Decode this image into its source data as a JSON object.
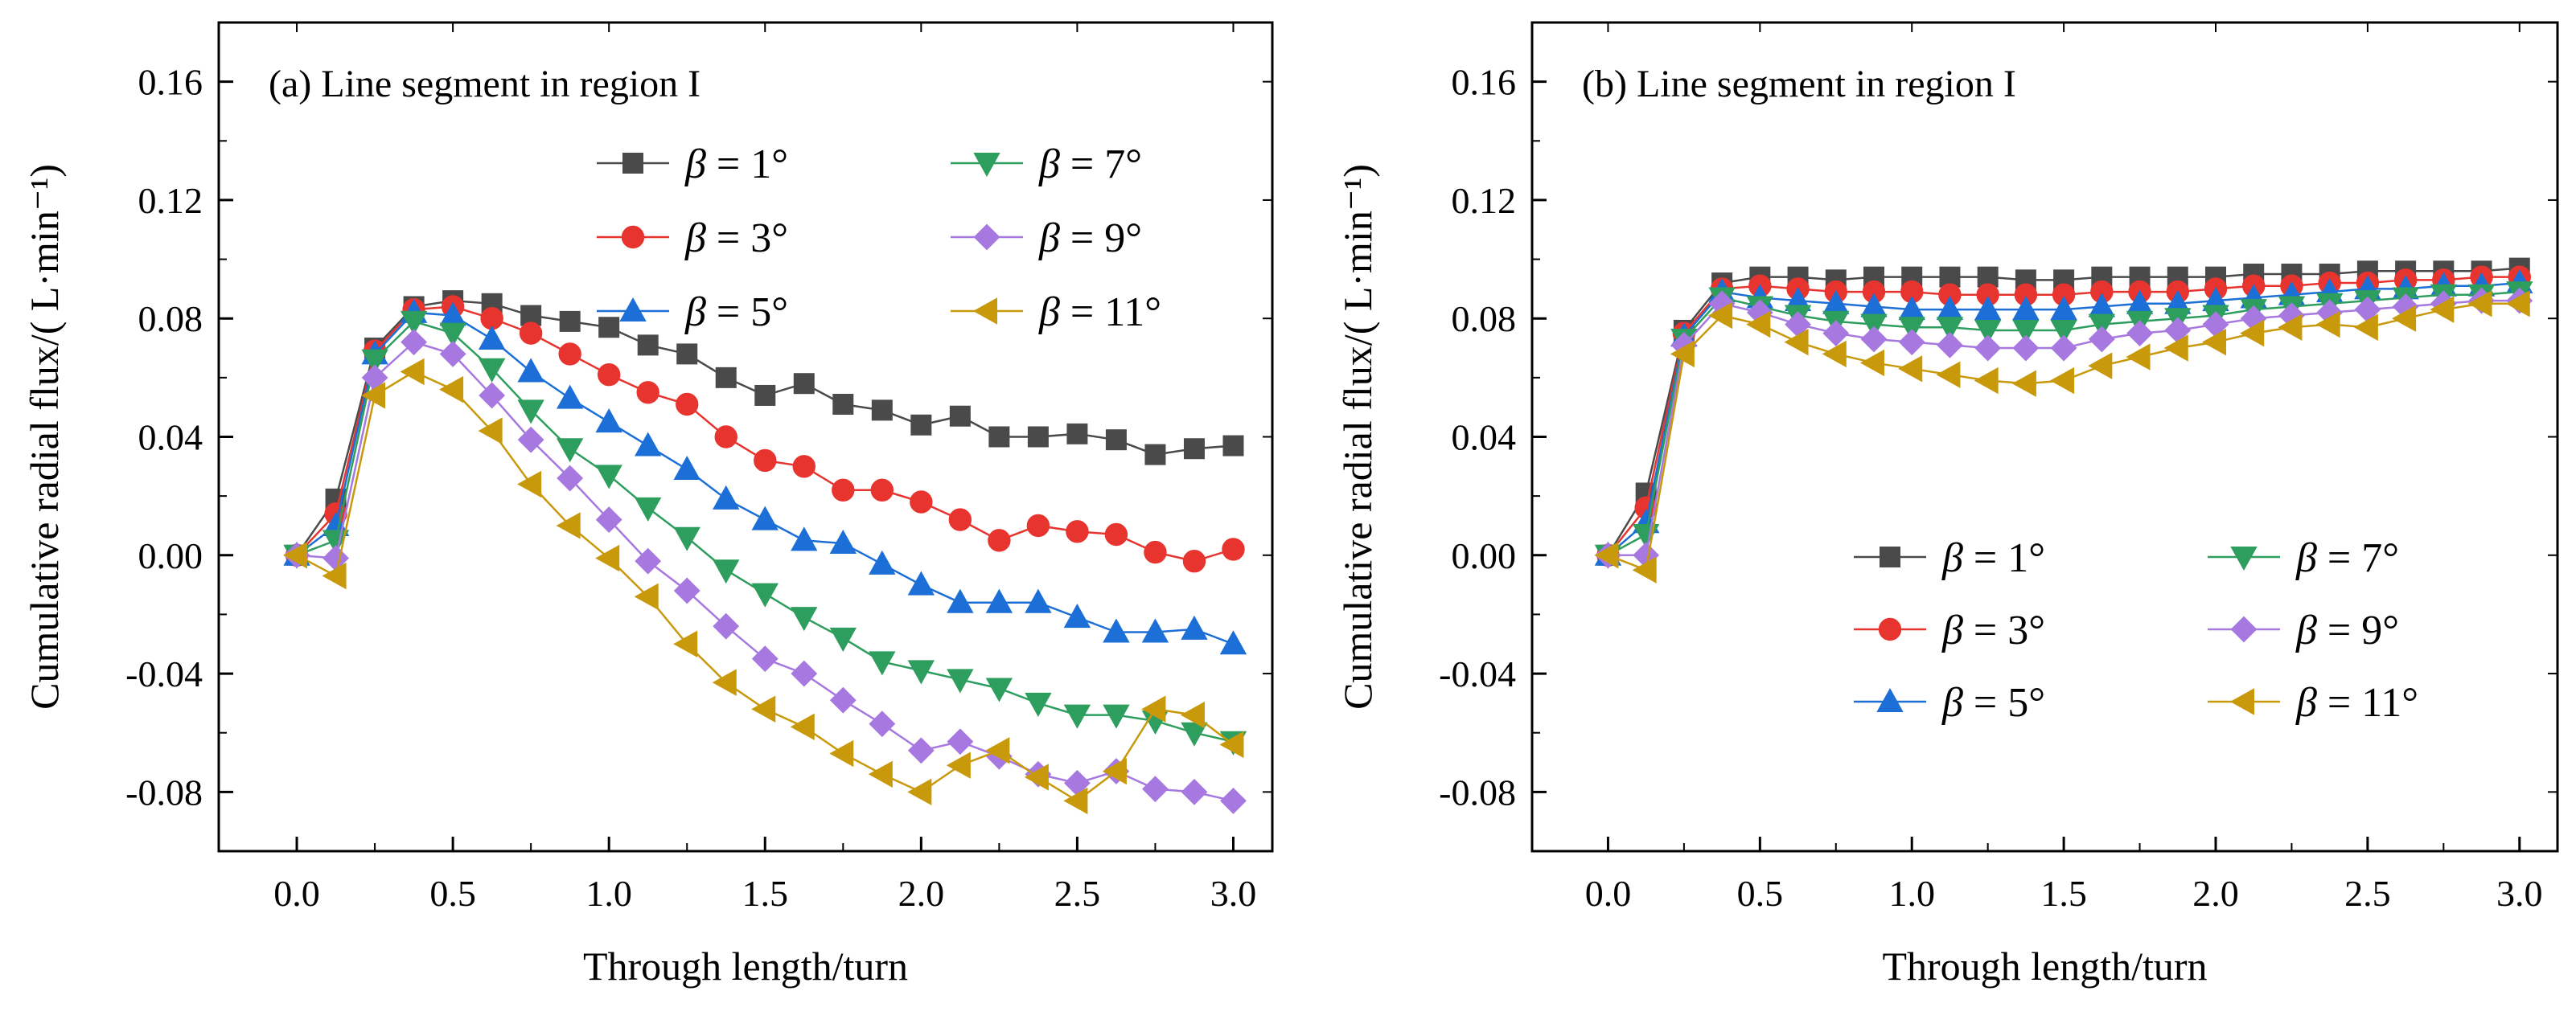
{
  "chart_data": [
    {
      "type": "line",
      "title": "(a)  Line segment in region I",
      "xlabel": "Through length/turn",
      "ylabel": "Cumulative radial flux/( L·min⁻¹)",
      "xlim": [
        -0.25,
        3.125
      ],
      "ylim": [
        -0.1,
        0.18
      ],
      "xticks": [
        "0.0",
        "0.5",
        "1.0",
        "1.5",
        "2.0",
        "2.5",
        "3.0"
      ],
      "yticks": [
        "-0.08",
        "-0.04",
        "0.00",
        "0.04",
        "0.08",
        "0.12",
        "0.16"
      ],
      "legend_position": "top-right",
      "x": [
        0,
        0.125,
        0.25,
        0.375,
        0.5,
        0.625,
        0.75,
        0.875,
        1.0,
        1.125,
        1.25,
        1.375,
        1.5,
        1.625,
        1.75,
        1.875,
        2.0,
        2.125,
        2.25,
        2.375,
        2.5,
        2.625,
        2.75,
        2.875,
        3.0
      ],
      "series": [
        {
          "name": "β = 1°",
          "label_sym": "β",
          "label_val": " = 1°",
          "color": "#4a4a4a",
          "marker": "square",
          "values": [
            0,
            0.019,
            0.07,
            0.084,
            0.086,
            0.085,
            0.081,
            0.079,
            0.077,
            0.071,
            0.068,
            0.06,
            0.054,
            0.058,
            0.051,
            0.049,
            0.044,
            0.047,
            0.04,
            0.04,
            0.041,
            0.039,
            0.034,
            0.036,
            0.037
          ]
        },
        {
          "name": "β = 3°",
          "label_sym": "β",
          "label_val": " = 3°",
          "color": "#e8342f",
          "marker": "circle",
          "values": [
            0,
            0.014,
            0.069,
            0.083,
            0.084,
            0.08,
            0.075,
            0.068,
            0.061,
            0.055,
            0.051,
            0.04,
            0.032,
            0.03,
            0.022,
            0.022,
            0.018,
            0.012,
            0.005,
            0.01,
            0.008,
            0.007,
            0.001,
            -0.002,
            0.002
          ]
        },
        {
          "name": "β = 5°",
          "label_sym": "β",
          "label_val": " = 5°",
          "color": "#1c6fd6",
          "marker": "triangle-up",
          "values": [
            0,
            0.01,
            0.068,
            0.082,
            0.081,
            0.073,
            0.062,
            0.053,
            0.045,
            0.037,
            0.029,
            0.019,
            0.012,
            0.005,
            0.004,
            -0.003,
            -0.01,
            -0.016,
            -0.016,
            -0.016,
            -0.021,
            -0.026,
            -0.026,
            -0.025,
            -0.03
          ]
        },
        {
          "name": "β = 7°",
          "label_sym": "β",
          "label_val": " = 7°",
          "color": "#2e9e5e",
          "marker": "triangle-down",
          "values": [
            0,
            0.005,
            0.066,
            0.079,
            0.075,
            0.063,
            0.049,
            0.036,
            0.027,
            0.016,
            0.006,
            -0.005,
            -0.013,
            -0.021,
            -0.028,
            -0.036,
            -0.039,
            -0.042,
            -0.045,
            -0.05,
            -0.054,
            -0.054,
            -0.056,
            -0.06,
            -0.063
          ]
        },
        {
          "name": "β = 9°",
          "label_sym": "β",
          "label_val": " = 9°",
          "color": "#a678e0",
          "marker": "diamond",
          "values": [
            0,
            -0.001,
            0.06,
            0.072,
            0.068,
            0.054,
            0.039,
            0.026,
            0.012,
            -0.002,
            -0.012,
            -0.024,
            -0.035,
            -0.04,
            -0.049,
            -0.057,
            -0.066,
            -0.063,
            -0.068,
            -0.074,
            -0.077,
            -0.073,
            -0.079,
            -0.08,
            -0.083
          ]
        },
        {
          "name": "β = 11°",
          "label_sym": "β",
          "label_val": " = 11°",
          "color": "#c9990c",
          "marker": "triangle-left",
          "values": [
            0,
            -0.007,
            0.054,
            0.062,
            0.056,
            0.042,
            0.024,
            0.01,
            -0.001,
            -0.014,
            -0.03,
            -0.043,
            -0.052,
            -0.058,
            -0.067,
            -0.074,
            -0.08,
            -0.071,
            -0.066,
            -0.075,
            -0.083,
            -0.073,
            -0.052,
            -0.054,
            -0.064
          ]
        }
      ]
    },
    {
      "type": "line",
      "title": "(b)  Line segment in region I",
      "xlabel": "Through length/turn",
      "ylabel": "Cumulative radial flux/( L·min⁻¹)",
      "xlim": [
        -0.25,
        3.125
      ],
      "ylim": [
        -0.1,
        0.18
      ],
      "xticks": [
        "0.0",
        "0.5",
        "1.0",
        "1.5",
        "2.0",
        "2.5",
        "3.0"
      ],
      "yticks": [
        "-0.08",
        "-0.04",
        "0.00",
        "0.04",
        "0.08",
        "0.12",
        "0.16"
      ],
      "legend_position": "bottom-right",
      "x": [
        0,
        0.125,
        0.25,
        0.375,
        0.5,
        0.625,
        0.75,
        0.875,
        1.0,
        1.125,
        1.25,
        1.375,
        1.5,
        1.625,
        1.75,
        1.875,
        2.0,
        2.125,
        2.25,
        2.375,
        2.5,
        2.625,
        2.75,
        2.875,
        3.0
      ],
      "series": [
        {
          "name": "β = 1°",
          "label_sym": "β",
          "label_val": " = 1°",
          "color": "#4a4a4a",
          "marker": "square",
          "values": [
            0,
            0.021,
            0.076,
            0.092,
            0.094,
            0.094,
            0.093,
            0.094,
            0.094,
            0.094,
            0.094,
            0.093,
            0.093,
            0.094,
            0.094,
            0.094,
            0.094,
            0.095,
            0.095,
            0.095,
            0.096,
            0.096,
            0.096,
            0.096,
            0.097
          ]
        },
        {
          "name": "β = 3°",
          "label_sym": "β",
          "label_val": " = 3°",
          "color": "#e8342f",
          "marker": "circle",
          "values": [
            0,
            0.016,
            0.075,
            0.09,
            0.091,
            0.09,
            0.089,
            0.089,
            0.089,
            0.088,
            0.088,
            0.088,
            0.088,
            0.089,
            0.089,
            0.089,
            0.09,
            0.091,
            0.091,
            0.092,
            0.092,
            0.093,
            0.093,
            0.094,
            0.094
          ]
        },
        {
          "name": "β = 5°",
          "label_sym": "β",
          "label_val": " = 5°",
          "color": "#1c6fd6",
          "marker": "triangle-up",
          "values": [
            0,
            0.011,
            0.074,
            0.089,
            0.087,
            0.086,
            0.085,
            0.084,
            0.083,
            0.083,
            0.083,
            0.083,
            0.083,
            0.084,
            0.085,
            0.085,
            0.086,
            0.087,
            0.088,
            0.089,
            0.09,
            0.09,
            0.091,
            0.091,
            0.092
          ]
        },
        {
          "name": "β = 7°",
          "label_sym": "β",
          "label_val": " = 7°",
          "color": "#2e9e5e",
          "marker": "triangle-down",
          "values": [
            0,
            0.007,
            0.073,
            0.087,
            0.084,
            0.081,
            0.079,
            0.078,
            0.077,
            0.077,
            0.076,
            0.076,
            0.076,
            0.078,
            0.079,
            0.08,
            0.081,
            0.083,
            0.084,
            0.085,
            0.086,
            0.087,
            0.088,
            0.088,
            0.089
          ]
        },
        {
          "name": "β = 9°",
          "label_sym": "β",
          "label_val": " = 9°",
          "color": "#a678e0",
          "marker": "diamond",
          "values": [
            0,
            0.0,
            0.071,
            0.085,
            0.082,
            0.078,
            0.075,
            0.073,
            0.072,
            0.071,
            0.07,
            0.07,
            0.07,
            0.073,
            0.075,
            0.076,
            0.078,
            0.08,
            0.081,
            0.082,
            0.083,
            0.084,
            0.085,
            0.086,
            0.086
          ]
        },
        {
          "name": "β = 11°",
          "label_sym": "β",
          "label_val": " = 11°",
          "color": "#c9990c",
          "marker": "triangle-left",
          "values": [
            0,
            -0.005,
            0.068,
            0.081,
            0.078,
            0.072,
            0.068,
            0.065,
            0.063,
            0.061,
            0.059,
            0.058,
            0.059,
            0.064,
            0.067,
            0.07,
            0.072,
            0.075,
            0.077,
            0.078,
            0.077,
            0.08,
            0.083,
            0.085,
            0.085
          ]
        }
      ]
    }
  ]
}
